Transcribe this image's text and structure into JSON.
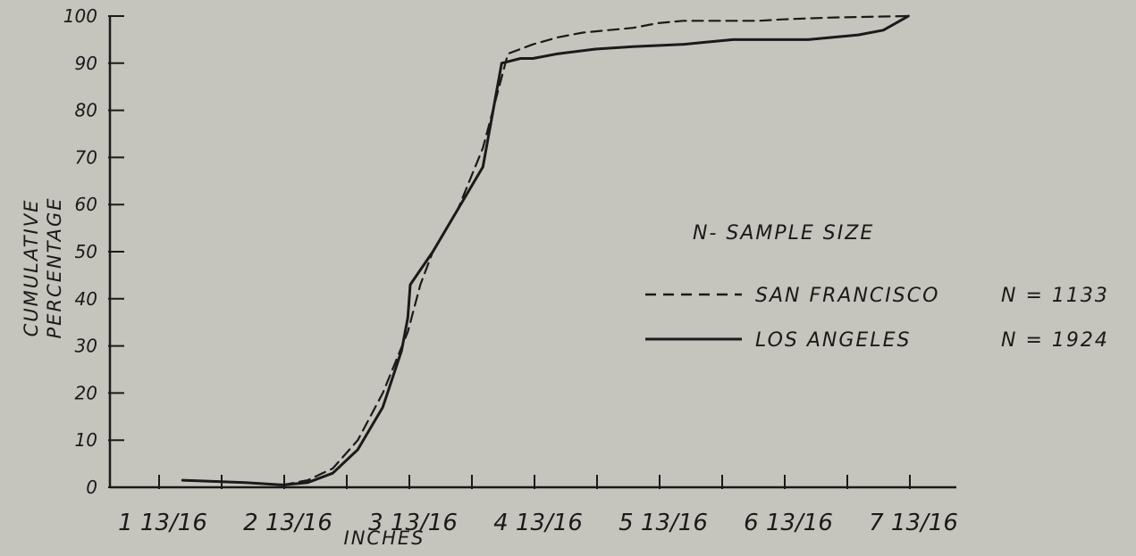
{
  "chart_data": {
    "type": "line",
    "xlabel": "INCHES",
    "ylabel_lines": [
      "CUMULATIVE",
      "PERCENTAGE"
    ],
    "x_tick_labels": [
      "1 13/16",
      "2 13/16",
      "3 13/16",
      "4 13/16",
      "5 13/16",
      "6 13/16",
      "7 13/16"
    ],
    "x_tick_values": [
      1.8125,
      2.8125,
      3.8125,
      4.8125,
      5.8125,
      6.8125,
      7.8125
    ],
    "y_tick_labels": [
      "0",
      "10",
      "20",
      "30",
      "40",
      "50",
      "60",
      "70",
      "80",
      "90",
      "100"
    ],
    "xlim": [
      1.0,
      9.0
    ],
    "ylim": [
      0,
      100
    ],
    "grid": false,
    "legend": {
      "title": "N- SAMPLE SIZE",
      "placement": "right",
      "entries": [
        {
          "series": "San Francisco",
          "label": "SAN FRANCISCO",
          "n_label": "N = 1133",
          "style": "dashed"
        },
        {
          "series": "Los Angeles",
          "label": "LOS ANGELES",
          "n_label": "N = 1924",
          "style": "solid"
        }
      ]
    },
    "series": [
      {
        "name": "SAN FRANCISCO",
        "style": "dashed",
        "x": [
          2.8,
          3.0,
          3.2,
          3.4,
          3.6,
          3.8,
          3.9,
          4.0,
          4.2,
          4.4,
          4.6,
          4.8,
          5.0,
          5.2,
          5.4,
          5.6,
          5.8,
          6.0,
          6.2,
          6.4,
          6.6,
          6.8,
          7.0,
          7.2,
          7.4,
          7.6,
          7.8
        ],
        "y": [
          0.5,
          1.5,
          4,
          10,
          20,
          33,
          43,
          50,
          59,
          72,
          92,
          94,
          95.5,
          96.5,
          97,
          97.5,
          98.5,
          99,
          99,
          99,
          99,
          99.3,
          99.5,
          99.7,
          99.8,
          99.9,
          100
        ]
      },
      {
        "name": "LOS ANGELES",
        "style": "solid",
        "x": [
          2.0,
          2.5,
          2.8,
          3.0,
          3.2,
          3.4,
          3.6,
          3.75,
          3.8,
          3.82,
          4.0,
          4.2,
          4.4,
          4.55,
          4.7,
          4.8,
          5.0,
          5.3,
          5.6,
          6.0,
          6.2,
          6.4,
          6.6,
          6.8,
          7.0,
          7.2,
          7.4,
          7.6,
          7.8
        ],
        "y": [
          1.5,
          1,
          0.5,
          1,
          3,
          8,
          17,
          29,
          36,
          43,
          50,
          59,
          68,
          90,
          91,
          91,
          92,
          93,
          93.5,
          94,
          94.5,
          95,
          95,
          95,
          95,
          95.5,
          96,
          97,
          100
        ]
      }
    ]
  }
}
